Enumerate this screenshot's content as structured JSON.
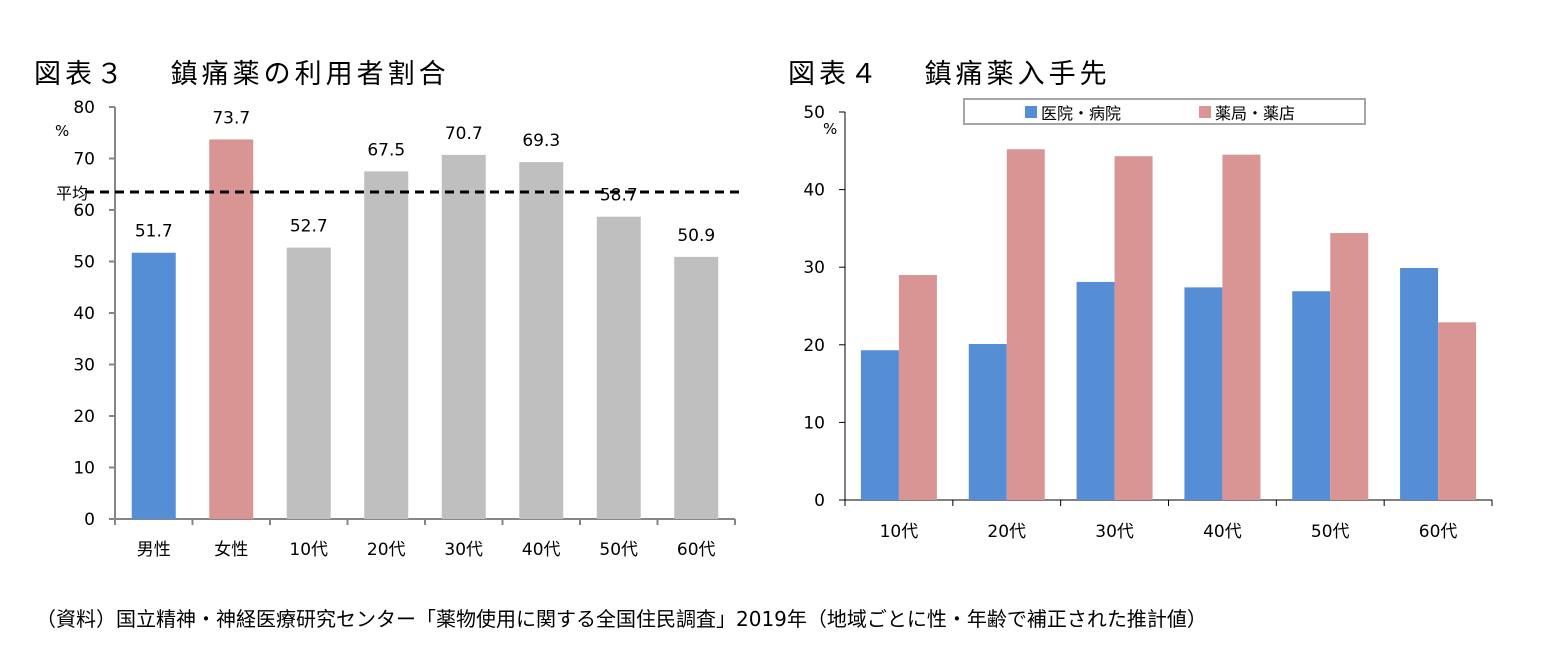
{
  "chart_data": [
    {
      "type": "bar",
      "title": "図表３　 鎮痛薬の利用者割合",
      "ylabel": "%",
      "categories": [
        "男性",
        "女性",
        "10代",
        "20代",
        "30代",
        "40代",
        "50代",
        "60代"
      ],
      "values": [
        51.7,
        73.7,
        52.7,
        67.5,
        70.7,
        69.3,
        58.7,
        50.9
      ],
      "bar_colors": [
        "#558ED5",
        "#D99594",
        "#BFBFBF",
        "#BFBFBF",
        "#BFBFBF",
        "#BFBFBF",
        "#BFBFBF",
        "#BFBFBF"
      ],
      "reference_line": {
        "label": "平均",
        "value": 63.5,
        "style": "dashed"
      },
      "ylim": [
        0,
        80
      ],
      "yticks": [
        0,
        10,
        20,
        30,
        40,
        50,
        60,
        70,
        80
      ],
      "grid": false
    },
    {
      "type": "bar",
      "title": "図表４　 鎮痛薬入手先",
      "ylabel": "%",
      "categories": [
        "10代",
        "20代",
        "30代",
        "40代",
        "50代",
        "60代"
      ],
      "series": [
        {
          "name": "医院・病院",
          "color": "#558ED5",
          "values": [
            19.3,
            20.1,
            28.1,
            27.4,
            26.9,
            29.9
          ]
        },
        {
          "name": "薬局・薬店",
          "color": "#D99594",
          "values": [
            29.0,
            45.2,
            44.3,
            44.5,
            34.4,
            22.9
          ]
        }
      ],
      "ylim": [
        0,
        50
      ],
      "yticks": [
        0,
        10,
        20,
        30,
        40,
        50
      ],
      "legend": "top",
      "grid": false
    }
  ],
  "source": "（資料）国立精神・神経医療研究センター「薬物使用に関する全国住民調査」2019年（地域ごとに性・年齢で補正された推計値）"
}
